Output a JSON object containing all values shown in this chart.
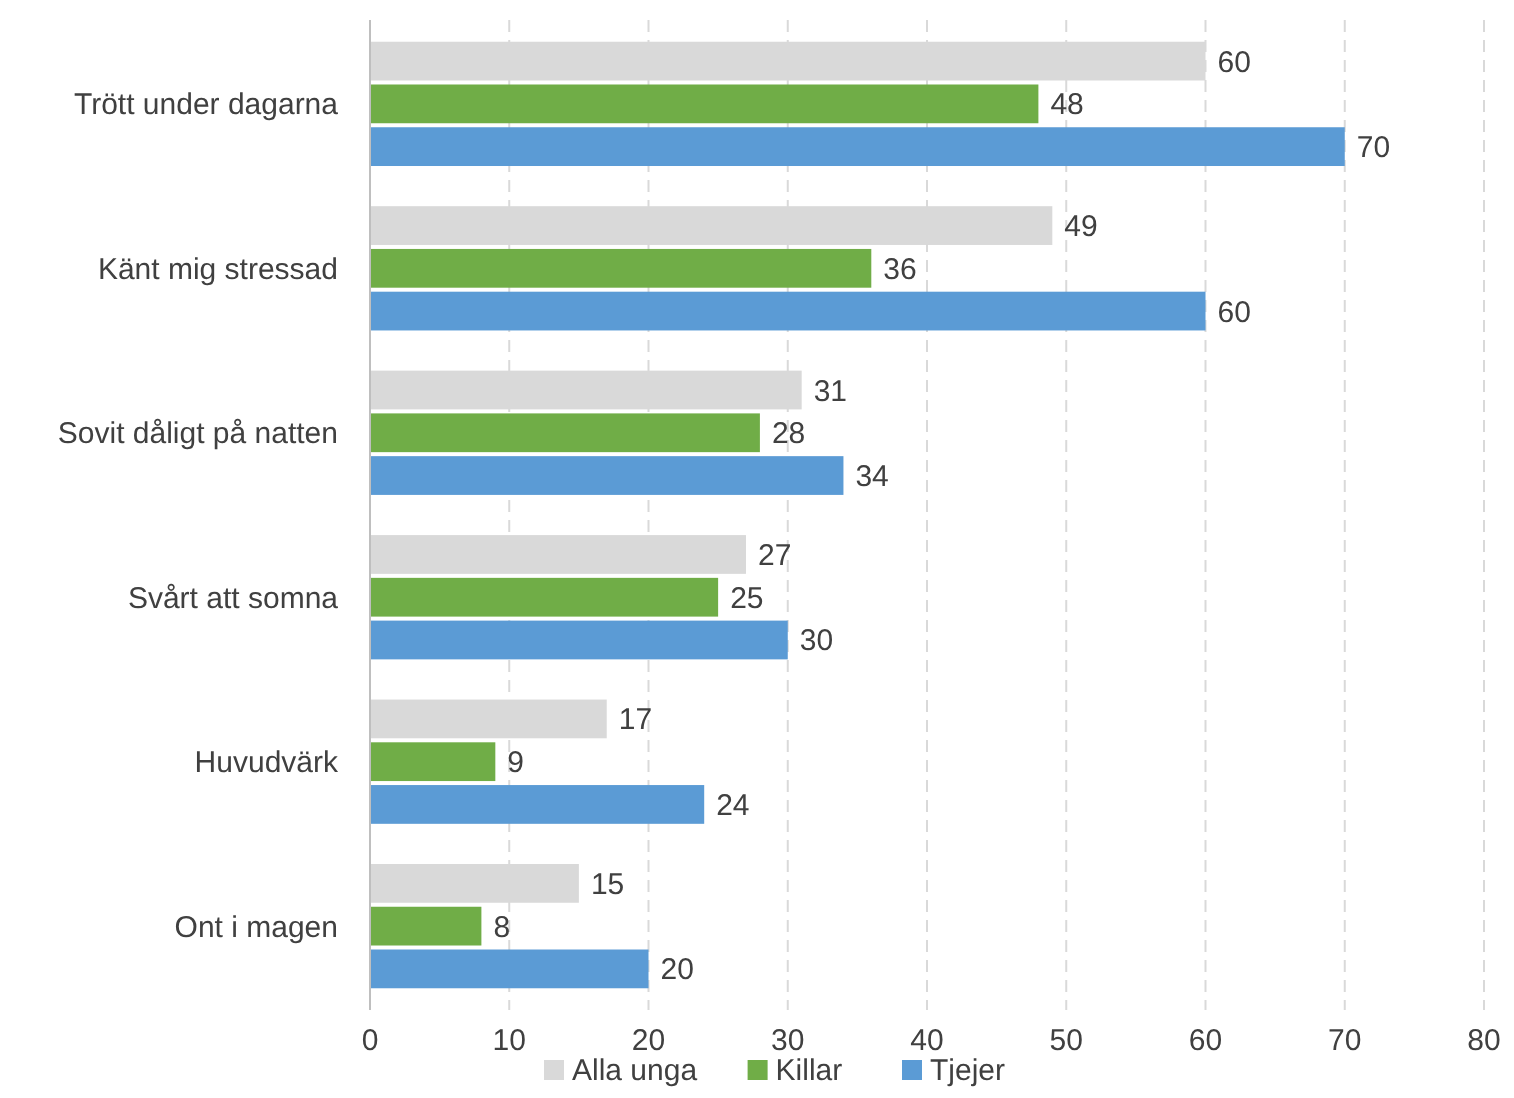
{
  "chart_data": {
    "type": "bar",
    "orientation": "horizontal",
    "categories": [
      "Trött under dagarna",
      "Känt mig stressad",
      "Sovit dåligt på natten",
      "Svårt att somna",
      "Huvudvärk",
      "Ont i magen"
    ],
    "series": [
      {
        "name": "Alla unga",
        "color": "#d9d9d9",
        "values": [
          60,
          49,
          31,
          27,
          17,
          15
        ]
      },
      {
        "name": "Killar",
        "color": "#70ad47",
        "values": [
          48,
          36,
          28,
          25,
          9,
          8
        ]
      },
      {
        "name": "Tjejer",
        "color": "#5b9bd5",
        "values": [
          70,
          60,
          34,
          30,
          24,
          20
        ]
      }
    ],
    "xlim": [
      0,
      80
    ],
    "xticks": [
      0,
      10,
      20,
      30,
      40,
      50,
      60,
      70,
      80
    ],
    "grid": "x",
    "legend": "bottom",
    "data_labels": true
  }
}
